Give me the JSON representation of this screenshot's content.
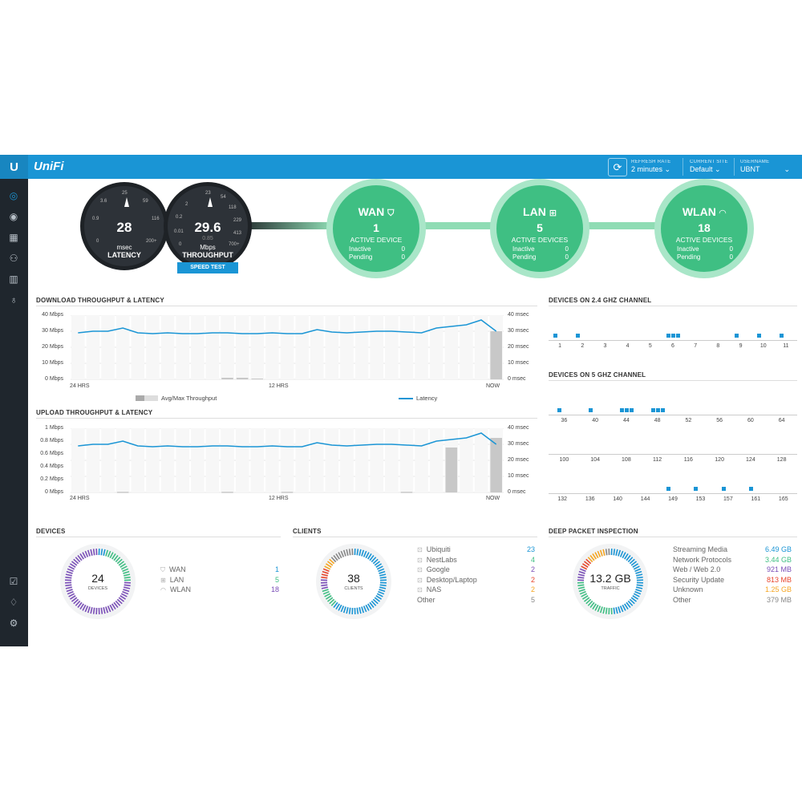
{
  "topbar": {
    "logo_glyph": "U",
    "brand": "UniFi",
    "refresh_icon": "refresh-icon",
    "refresh": {
      "label": "REFRESH RATE",
      "value": "2 minutes"
    },
    "site": {
      "label": "CURRENT SITE",
      "value": "Default"
    },
    "user": {
      "label": "USERNAME",
      "value": "UBNT"
    },
    "accent": "#1a95d5"
  },
  "sidebar": {
    "top_icons": [
      "dashboard-icon",
      "statistics-icon",
      "map-icon",
      "clients-icon",
      "insights-icon",
      "events-icon"
    ],
    "bottom_icons": [
      "alerts-icon",
      "notifications-icon",
      "settings-icon"
    ]
  },
  "gauges": {
    "latency": {
      "value": "28",
      "unit": "msec",
      "label": "LATENCY",
      "ticks": [
        "25",
        "59",
        "116",
        "200+",
        "0",
        "0.9",
        "3.6"
      ]
    },
    "throughput": {
      "value": "29.6",
      "sub": "0.85",
      "unit": "Mbps",
      "label": "THROUGHPUT",
      "ticks": [
        "23",
        "54",
        "118",
        "229",
        "413",
        "700+",
        "0",
        "0.01",
        "0.2",
        "2"
      ]
    },
    "speed_test": "SPEED TEST"
  },
  "status": {
    "wan": {
      "title": "WAN",
      "count": "1",
      "sub": "ACTIVE DEVICE",
      "inactive_label": "Inactive",
      "inactive": "0",
      "pending_label": "Pending",
      "pending": "0"
    },
    "lan": {
      "title": "LAN",
      "count": "5",
      "sub": "ACTIVE DEVICES",
      "inactive_label": "Inactive",
      "inactive": "0",
      "pending_label": "Pending",
      "pending": "0"
    },
    "wlan": {
      "title": "WLAN",
      "count": "18",
      "sub": "ACTIVE DEVICES",
      "inactive_label": "Inactive",
      "inactive": "0",
      "pending_label": "Pending",
      "pending": "0"
    },
    "color": "#3fbf83"
  },
  "download": {
    "title": "DOWNLOAD THROUGHPUT & LATENCY",
    "y_left": [
      "40 Mbps",
      "30 Mbps",
      "20 Mbps",
      "10 Mbps",
      "0 Mbps"
    ],
    "y_right": [
      "40 msec",
      "30 msec",
      "20 msec",
      "10 msec",
      "0 msec"
    ],
    "x": [
      "24 HRS",
      "12 HRS",
      "NOW"
    ],
    "legend_throughput": "Avg/Max Throughput",
    "legend_latency": "Latency"
  },
  "upload": {
    "title": "UPLOAD THROUGHPUT & LATENCY",
    "y_left": [
      "1 Mbps",
      "0.8 Mbps",
      "0.6 Mbps",
      "0.4 Mbps",
      "0.2 Mbps",
      "0 Mbps"
    ],
    "y_right": [
      "40 msec",
      "30 msec",
      "20 msec",
      "10 msec",
      "0 msec"
    ],
    "x": [
      "24 HRS",
      "12 HRS",
      "NOW"
    ]
  },
  "chart_data": [
    {
      "type": "line",
      "title": "DOWNLOAD THROUGHPUT & LATENCY",
      "ylim": [
        0,
        40
      ],
      "series": [
        {
          "name": "Latency",
          "values": [
            29,
            30,
            30,
            32,
            29,
            28.5,
            29,
            28.5,
            28.5,
            29,
            29,
            28.5,
            28.5,
            29,
            28.5,
            28.5,
            31,
            29.5,
            29,
            29.5,
            30,
            30,
            29.5,
            29,
            32,
            33,
            34,
            37,
            30
          ]
        },
        {
          "name": "Avg/Max Throughput",
          "values": [
            0,
            0,
            0,
            0,
            0,
            0,
            0,
            0,
            0,
            0,
            1,
            1,
            0.5,
            0,
            0,
            0,
            0,
            0,
            0,
            0,
            0,
            0,
            0,
            0,
            0,
            0,
            0,
            0,
            30
          ]
        }
      ]
    },
    {
      "type": "line",
      "title": "UPLOAD THROUGHPUT & LATENCY",
      "ylim": [
        0,
        1
      ],
      "series": [
        {
          "name": "Latency",
          "values": [
            29,
            30,
            30,
            32,
            29,
            28.5,
            29,
            28.5,
            28.5,
            29,
            29,
            28.5,
            28.5,
            29,
            28.5,
            28.5,
            31,
            29.5,
            29,
            29.5,
            30,
            30,
            29.5,
            29,
            32,
            33,
            34,
            37,
            30
          ]
        },
        {
          "name": "Avg/Max Throughput",
          "values": [
            0,
            0,
            0,
            0.01,
            0,
            0,
            0,
            0,
            0,
            0,
            0.01,
            0,
            0,
            0,
            0.01,
            0,
            0,
            0,
            0,
            0,
            0,
            0,
            0.01,
            0,
            0,
            0.7,
            0,
            0,
            0.85
          ]
        }
      ]
    }
  ],
  "channels24": {
    "title": "DEVICES ON 2.4 GHZ CHANNEL",
    "labels": [
      "1",
      "2",
      "3",
      "4",
      "5",
      "6",
      "7",
      "8",
      "9",
      "10",
      "11"
    ],
    "counts": [
      1,
      1,
      0,
      0,
      0,
      3,
      0,
      0,
      1,
      1,
      1
    ]
  },
  "channels5": {
    "title": "DEVICES ON 5 GHZ CHANNEL",
    "row1": [
      "36",
      "40",
      "44",
      "48",
      "52",
      "56",
      "60",
      "64"
    ],
    "row1_counts": [
      1,
      1,
      3,
      3,
      0,
      0,
      0,
      0
    ],
    "row2": [
      "100",
      "104",
      "108",
      "112",
      "116",
      "120",
      "124",
      "128"
    ],
    "row2_counts": [
      0,
      0,
      0,
      0,
      0,
      0,
      0,
      0
    ],
    "row3": [
      "132",
      "136",
      "140",
      "144",
      "149",
      "153",
      "157",
      "161",
      "165"
    ],
    "row3_counts": [
      0,
      0,
      0,
      0,
      1,
      1,
      1,
      1,
      0
    ]
  },
  "devices": {
    "title": "DEVICES",
    "total": "24",
    "total_label": "DEVICES",
    "items": [
      {
        "icon": "shield-icon",
        "label": "WAN",
        "value": "1",
        "color": "#1a95d5"
      },
      {
        "icon": "network-icon",
        "label": "LAN",
        "value": "5",
        "color": "#3fbf83"
      },
      {
        "icon": "wifi-icon",
        "label": "WLAN",
        "value": "18",
        "color": "#7b4fb8"
      }
    ]
  },
  "clients": {
    "title": "CLIENTS",
    "total": "38",
    "total_label": "CLIENTS",
    "items": [
      {
        "label": "Ubiquiti",
        "value": "23",
        "color": "#1a95d5"
      },
      {
        "label": "NestLabs",
        "value": "4",
        "color": "#3fbf83"
      },
      {
        "label": "Google",
        "value": "2",
        "color": "#7b4fb8"
      },
      {
        "label": "Desktop/Laptop",
        "value": "2",
        "color": "#e8452c"
      },
      {
        "label": "NAS",
        "value": "2",
        "color": "#f5a623"
      },
      {
        "label": "Other",
        "value": "5",
        "color": "#888888"
      }
    ]
  },
  "dpi": {
    "title": "DEEP PACKET INSPECTION",
    "total": "13.2 GB",
    "total_label": "TRAFFIC",
    "items": [
      {
        "label": "Streaming Media",
        "value": "6.49 GB",
        "color": "#1a95d5"
      },
      {
        "label": "Network Protocols",
        "value": "3.44 GB",
        "color": "#3fbf83"
      },
      {
        "label": "Web / Web 2.0",
        "value": "921 MB",
        "color": "#7b4fb8"
      },
      {
        "label": "Security Update",
        "value": "813 MB",
        "color": "#e8452c"
      },
      {
        "label": "Unknown",
        "value": "1.25 GB",
        "color": "#f5a623"
      },
      {
        "label": "Other",
        "value": "379 MB",
        "color": "#888888"
      }
    ]
  }
}
